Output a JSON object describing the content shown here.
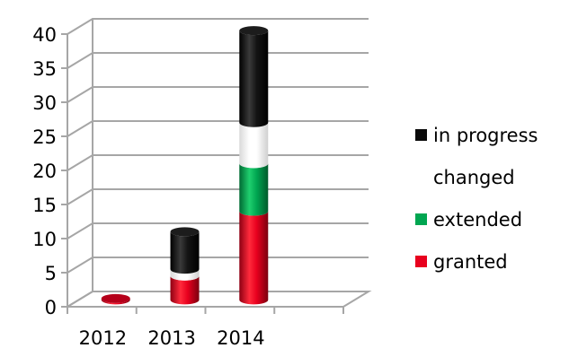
{
  "chart_data": {
    "type": "bar",
    "stacked": true,
    "three_d": true,
    "title": "",
    "xlabel": "",
    "ylabel": "",
    "categories": [
      "2012",
      "2013",
      "2014"
    ],
    "ylim": [
      0,
      40
    ],
    "yticks": [
      0,
      5,
      10,
      15,
      20,
      25,
      30,
      35,
      40
    ],
    "grid": true,
    "legend_position": "right",
    "series": [
      {
        "name": "granted",
        "color": "#e8001e",
        "values": [
          0.2,
          3.5,
          13
        ]
      },
      {
        "name": "extended",
        "color": "#00a651",
        "values": [
          0,
          0,
          7
        ]
      },
      {
        "name": "changed",
        "color": "#ffffff",
        "values": [
          0,
          1,
          6
        ]
      },
      {
        "name": "in progress",
        "color": "#0a0a0a",
        "values": [
          0,
          5.5,
          13.5
        ]
      }
    ],
    "legend_order": [
      "in progress",
      "changed",
      "extended",
      "granted"
    ]
  }
}
